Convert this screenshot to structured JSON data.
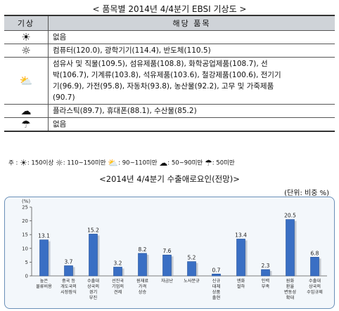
{
  "title": "< 품목별 2014년 4/4분기 EBSI 기상도 >",
  "table": {
    "headers": [
      "기상",
      "해당 품목"
    ],
    "rows": [
      {
        "icon": "strong-sun-icon",
        "glyph": "☀",
        "text": "없음"
      },
      {
        "icon": "sun-icon",
        "glyph": "☼",
        "text": "컴퓨터(120.0), 광학기기(114.4), 반도체(110.5)"
      },
      {
        "icon": "sun-cloud-icon",
        "glyph": "⛅",
        "lines": [
          "섬유사 및 직물(109.5), 섬유제품(108.8), 화학공업제품(108.7), 선",
          "박(106.7), 기계류(103.8), 석유제품(103.6), 철강제품(100.6), 전기기",
          "기(96.9), 가전(95.8), 자동차(93.8), 농산물(92.2), 고무 및 가죽제품",
          "(90.7)"
        ]
      },
      {
        "icon": "cloud-icon",
        "glyph": "☁",
        "text": "플라스틱(89.7), 휴대폰(88.1), 수산물(85.2)"
      },
      {
        "icon": "rain-icon",
        "glyph": "☂",
        "text": "없음"
      }
    ]
  },
  "legend": {
    "prefix": "주 :",
    "items": [
      {
        "glyph": "☀",
        "label": ": 150이상"
      },
      {
        "glyph": "☼",
        "label": ": 110~150미만"
      },
      {
        "glyph": "⛅",
        "label": ": 90~110미만"
      },
      {
        "glyph": "☁",
        "label": ": 50~90미만"
      },
      {
        "glyph": "☂",
        "label": ": 50미만"
      }
    ]
  },
  "subtitle": "<2014년 4/4분기 수출애로요인(전망)>",
  "unit": "(단위: 비중 %)",
  "chart_data": {
    "type": "bar",
    "ylabel": "(%)",
    "ylim": [
      0,
      25
    ],
    "yticks": [
      0,
      5,
      10,
      15,
      20,
      25
    ],
    "categories": [
      [
        "높은",
        "물류비용"
      ],
      [
        "중국 등",
        "개도국의",
        "시장잠식"
      ],
      [
        "수출대",
        "상국의",
        "경기",
        "부진"
      ],
      [
        "선진국",
        "기업의",
        "견제"
      ],
      [
        "원재료",
        "가격",
        "상승"
      ],
      [
        "자금난"
      ],
      [
        "노사분규"
      ],
      [
        "신규",
        "대체",
        "상품",
        "출현"
      ],
      [
        "엔화",
        "절하"
      ],
      [
        "인력",
        "부족"
      ],
      [
        "원화",
        "환율",
        "변동성",
        "확대"
      ],
      [
        "수출대",
        "상국의",
        "수입규제"
      ]
    ],
    "values": [
      13.1,
      3.7,
      15.2,
      3.2,
      8.2,
      7.6,
      5.2,
      0.7,
      13.4,
      2.3,
      20.5,
      6.8
    ],
    "value_labels": [
      "13.1",
      "3.7",
      "15.2",
      "3.2",
      "8.2",
      "7.6",
      "5.2",
      "0.7",
      "13.4",
      "2.3",
      "20.5",
      "6.8"
    ],
    "bar_color": "#3a6fc4"
  }
}
